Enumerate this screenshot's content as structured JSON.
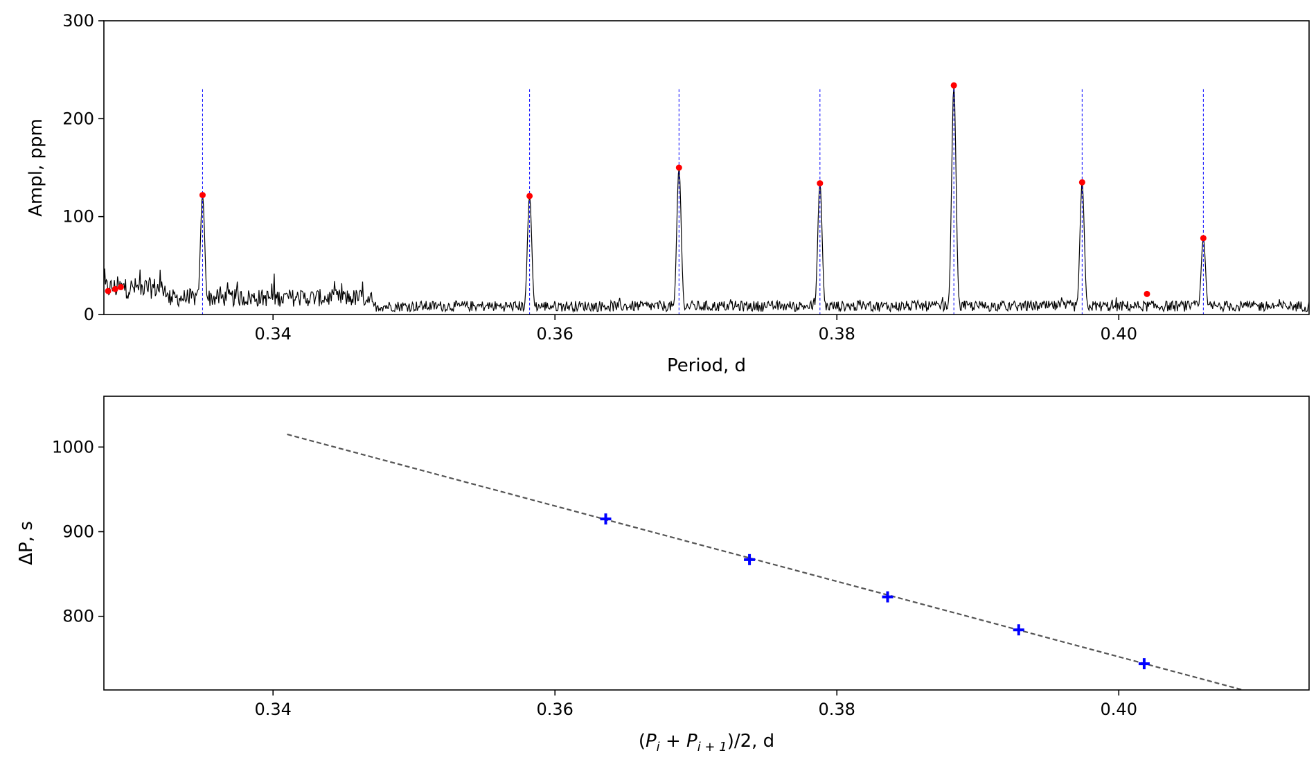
{
  "chart_data": [
    {
      "type": "line",
      "xlabel": "Period, d",
      "ylabel": "Ampl, ppm",
      "xlim": [
        0.328,
        0.4135
      ],
      "ylim": [
        0,
        300
      ],
      "xticks": [
        0.34,
        0.36,
        0.38,
        0.4
      ],
      "xtick_labels": [
        "0.34",
        "0.36",
        "0.38",
        "0.40"
      ],
      "yticks": [
        0,
        100,
        200,
        300
      ],
      "ytick_labels": [
        "0",
        "100",
        "200",
        "300"
      ],
      "grid": false,
      "legend": "none",
      "series": [
        {
          "kind": "periodogram-line",
          "color": "#000000",
          "peaks": [
            {
              "x": 0.335,
              "y": 122
            },
            {
              "x": 0.3582,
              "y": 121
            },
            {
              "x": 0.3688,
              "y": 150
            },
            {
              "x": 0.3788,
              "y": 134
            },
            {
              "x": 0.3883,
              "y": 234
            },
            {
              "x": 0.3974,
              "y": 135
            },
            {
              "x": 0.406,
              "y": 78
            }
          ]
        },
        {
          "kind": "detected-peaks",
          "marker": "dot",
          "color": "#ff0000",
          "points": [
            {
              "x": 0.3283,
              "y": 24
            },
            {
              "x": 0.3288,
              "y": 26
            },
            {
              "x": 0.3292,
              "y": 28
            },
            {
              "x": 0.335,
              "y": 122
            },
            {
              "x": 0.3582,
              "y": 121
            },
            {
              "x": 0.3688,
              "y": 150
            },
            {
              "x": 0.3788,
              "y": 134
            },
            {
              "x": 0.3883,
              "y": 234
            },
            {
              "x": 0.3974,
              "y": 135
            },
            {
              "x": 0.402,
              "y": 21
            },
            {
              "x": 0.406,
              "y": 78
            }
          ]
        },
        {
          "kind": "vertical-dashed-lines",
          "color": "#0000ff",
          "y_top": 230,
          "x": [
            0.335,
            0.3582,
            0.3688,
            0.3788,
            0.3883,
            0.3974,
            0.406
          ]
        }
      ]
    },
    {
      "type": "scatter",
      "xlabel": "(P_i + P_i+1)/2, d",
      "xlabel_parts": {
        "open": "(",
        "p1": "P",
        "s1": "i",
        "plus": " + ",
        "p2": "P",
        "s2": "i + 1",
        "close": ")/2, d"
      },
      "ylabel": "ΔP, s",
      "xlim": [
        0.328,
        0.4135
      ],
      "ylim": [
        713,
        1060
      ],
      "xticks": [
        0.34,
        0.36,
        0.38,
        0.4
      ],
      "xtick_labels": [
        "0.34",
        "0.36",
        "0.38",
        "0.40"
      ],
      "yticks": [
        800,
        900,
        1000
      ],
      "ytick_labels": [
        "800",
        "900",
        "1000"
      ],
      "grid": false,
      "legend": "none",
      "series": [
        {
          "kind": "points",
          "marker": "plus",
          "color": "#0000ff",
          "points": [
            {
              "x": 0.3636,
              "y": 915
            },
            {
              "x": 0.3738,
              "y": 867
            },
            {
              "x": 0.3836,
              "y": 823
            },
            {
              "x": 0.3929,
              "y": 784
            },
            {
              "x": 0.4018,
              "y": 744
            }
          ]
        },
        {
          "kind": "fit-line",
          "style": "dashed",
          "color": "#555555",
          "x": [
            0.341,
            0.4088
          ],
          "y": [
            1015,
            713
          ]
        }
      ]
    }
  ]
}
